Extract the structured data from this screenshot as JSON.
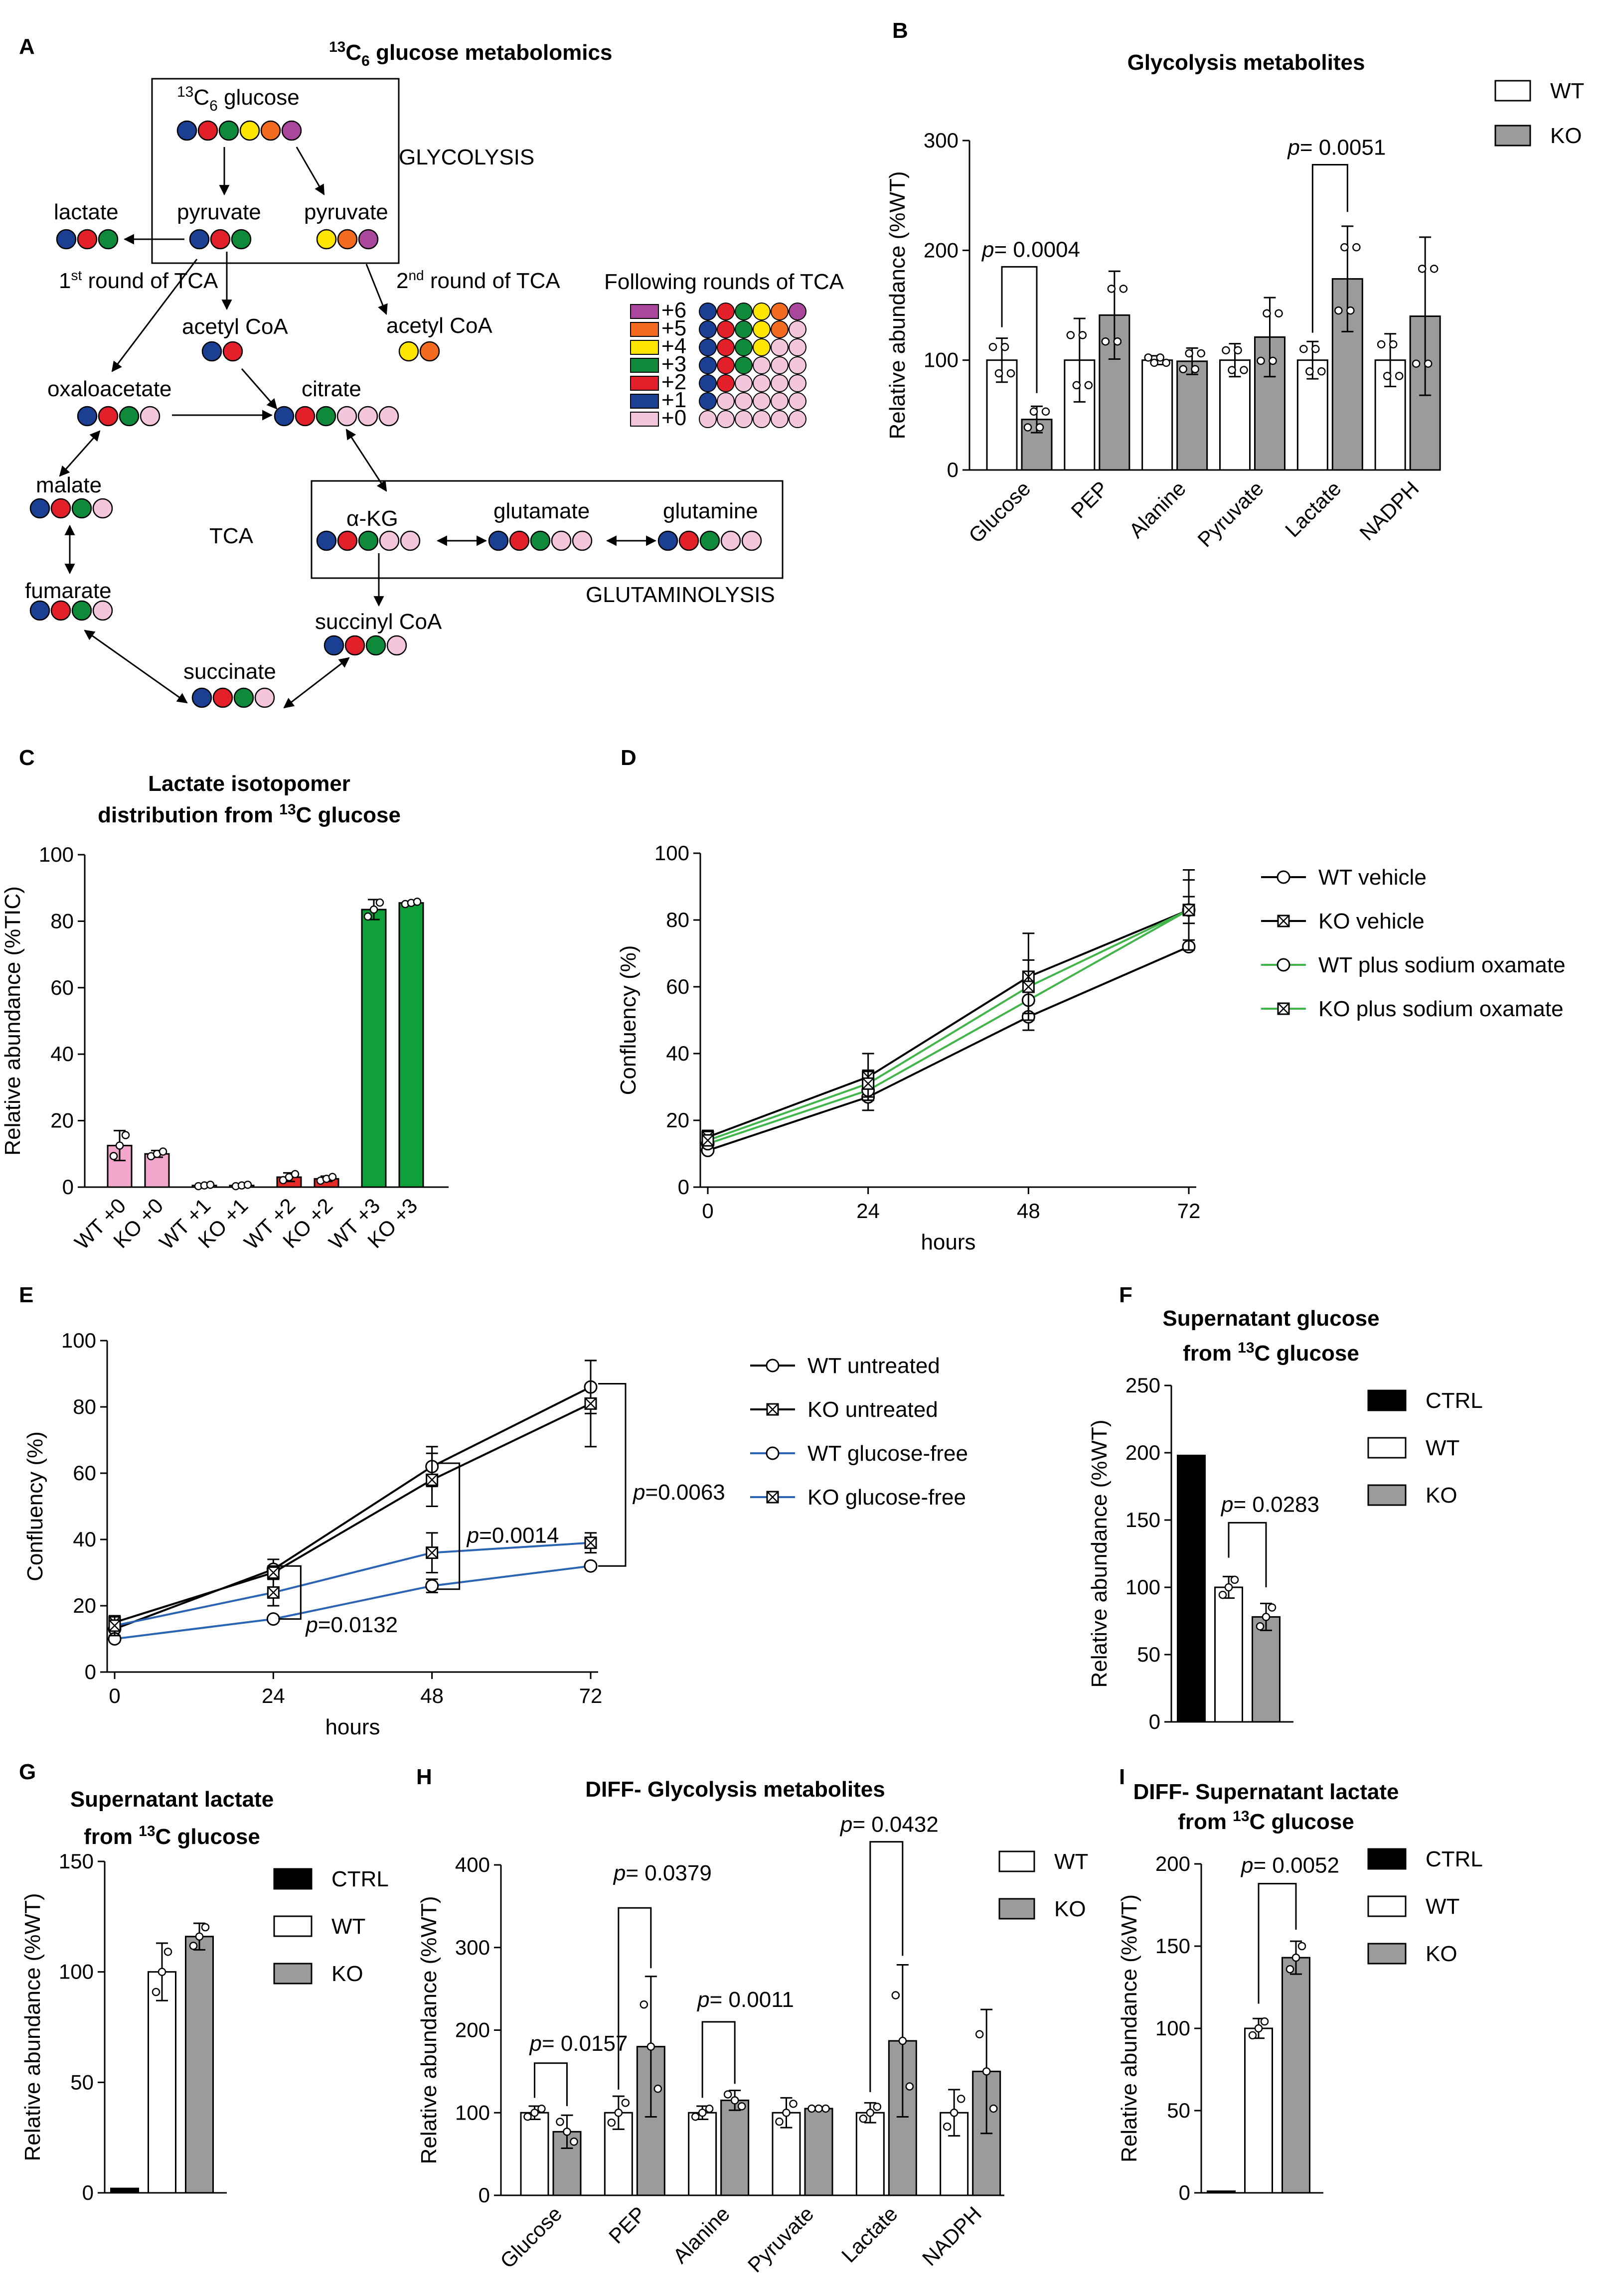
{
  "panel_labels": {
    "A": "A",
    "B": "B",
    "C": "C",
    "D": "D",
    "E": "E",
    "F": "F",
    "G": "G",
    "H": "H",
    "I": "I"
  },
  "colors": {
    "c0": "#f4c6dc",
    "c1": "#1a3f93",
    "c2": "#e3202a",
    "c3": "#0f8a3a",
    "c4": "#ffe600",
    "c5": "#f26b21",
    "c6": "#a9479d",
    "ko_bar": "#9b9b9b",
    "green_line": "#41b549",
    "blue_line": "#2b64b2",
    "lactate_pink": "#f2a6cb",
    "lactate_red": "#e52a2a",
    "lactate_green": "#10a03a"
  },
  "diagram": {
    "title_prefix": "13",
    "title_sub": "C",
    "title_sub2": "6",
    "title_rest": " glucose metabolomics",
    "glucose_sup": "13",
    "glucose_c": "C",
    "glucose_sub": "6",
    "glucose_rest": " glucose",
    "glycolysis": "GLYCOLYSIS",
    "pyruvate1": "pyruvate",
    "pyruvate2": "pyruvate",
    "lactate": "lactate",
    "first_round_1": "1",
    "first_round_st": "st",
    "first_round_2": " round of TCA",
    "second_round_1": "2",
    "second_round_nd": "nd",
    "second_round_2": " round of TCA",
    "acetyl1": "acetyl CoA",
    "acetyl2": "acetyl CoA",
    "oxaloacetate": "oxaloacetate",
    "citrate": "citrate",
    "malate": "malate",
    "tca": "TCA",
    "akg": "α-KG",
    "glutamate": "glutamate",
    "glutamine": "glutamine",
    "glutaminolysis": "GLUTAMINOLYSIS",
    "fumarate": "fumarate",
    "succinyl": "succinyl CoA",
    "succinate": "succinate",
    "following_rounds": "Following rounds of TCA",
    "isotopologues": [
      "+6",
      "+5",
      "+4",
      "+3",
      "+2",
      "+1",
      "+0"
    ]
  },
  "chart_data": [
    {
      "panel": "B",
      "type": "bar",
      "title": "Glycolysis metabolites",
      "categories": [
        "Glucose",
        "PEP",
        "Alanine",
        "Pyruvate",
        "Lactate",
        "NADPH"
      ],
      "ylabel": "Relative abundance (%WT)",
      "ylim": [
        0,
        300
      ],
      "yticks": [
        0,
        100,
        200,
        300
      ],
      "series": [
        {
          "name": "WT",
          "values": [
            100,
            100,
            100,
            100,
            100,
            100
          ],
          "errors": [
            20,
            38,
            4,
            15,
            17,
            24
          ]
        },
        {
          "name": "KO",
          "values": [
            46,
            141,
            99,
            121,
            174,
            140
          ],
          "errors": [
            12,
            40,
            12,
            36,
            48,
            72
          ]
        }
      ],
      "annotations": [
        {
          "text": "p= 0.0004",
          "category": "Glucose"
        },
        {
          "text": "p= 0.0051",
          "category": "Lactate"
        }
      ],
      "legend": [
        "WT",
        "KO"
      ]
    },
    {
      "panel": "C",
      "type": "bar",
      "title_line1": "Lactate isotopomer",
      "title_line2_pre": "distribution from ",
      "title_line2_sup": "13",
      "title_line2_post": "C glucose",
      "categories": [
        "WT +0",
        "KO +0",
        "WT +1",
        "KO +1",
        "WT +2",
        "KO +2",
        "WT +3",
        "KO +3"
      ],
      "values": [
        12.5,
        10,
        0.5,
        0.5,
        3,
        2.5,
        83.5,
        85.5
      ],
      "errors": [
        4.5,
        1,
        0.3,
        0.3,
        1.3,
        0.8,
        3,
        0.5
      ],
      "ylabel": "Relative abundance (%TIC)",
      "ylim": [
        0,
        100
      ],
      "yticks": [
        0,
        20,
        40,
        60,
        80,
        100
      ]
    },
    {
      "panel": "D",
      "type": "line",
      "xlabel": "hours",
      "ylabel": "Confluency (%)",
      "x": [
        0,
        24,
        48,
        72
      ],
      "xlim": [
        0,
        72
      ],
      "ylim": [
        0,
        100
      ],
      "yticks": [
        0,
        20,
        40,
        60,
        80,
        100
      ],
      "xticks": [
        0,
        24,
        48,
        72
      ],
      "series": [
        {
          "name": "WT vehicle",
          "values": [
            11,
            27,
            51,
            72
          ],
          "errors": [
            0,
            4,
            4,
            0
          ]
        },
        {
          "name": "KO vehicle",
          "values": [
            15,
            33,
            63,
            83
          ],
          "errors": [
            2,
            7,
            13,
            12
          ]
        },
        {
          "name": "WT plus sodium oxamate",
          "values": [
            13,
            29,
            56,
            83
          ],
          "errors": [
            0,
            3,
            4,
            4
          ]
        },
        {
          "name": "KO plus sodium oxamate",
          "values": [
            14,
            31,
            60,
            83
          ],
          "errors": [
            1,
            4,
            8,
            9
          ]
        }
      ]
    },
    {
      "panel": "E",
      "type": "line",
      "xlabel": "hours",
      "ylabel": "Confluency (%)",
      "x": [
        0,
        24,
        48,
        72
      ],
      "xlim": [
        0,
        72
      ],
      "ylim": [
        0,
        100
      ],
      "yticks": [
        0,
        20,
        40,
        60,
        80,
        100
      ],
      "xticks": [
        0,
        24,
        48,
        72
      ],
      "series": [
        {
          "name": "WT untreated",
          "values": [
            13,
            31,
            62,
            86
          ],
          "errors": [
            3,
            3,
            6,
            8
          ]
        },
        {
          "name": "KO untreated",
          "values": [
            15,
            30,
            58,
            81
          ],
          "errors": [
            2,
            2,
            8,
            13
          ]
        },
        {
          "name": "WT glucose-free",
          "values": [
            10,
            16,
            26,
            32
          ],
          "errors": [
            0,
            0,
            2,
            0
          ]
        },
        {
          "name": "KO glucose-free",
          "values": [
            14,
            24,
            36,
            39
          ],
          "errors": [
            3,
            4,
            6,
            3
          ]
        }
      ],
      "annotations": [
        "p=0.0132",
        "p=0.0014",
        "p=0.0063"
      ]
    },
    {
      "panel": "F",
      "type": "bar",
      "title_line1": "Supernatant glucose",
      "title_line2_pre": "from ",
      "title_line2_sup": "13",
      "title_line2_post": "C glucose",
      "categories": [
        "CTRL",
        "WT",
        "KO"
      ],
      "values": [
        198,
        100,
        78
      ],
      "errors": [
        0,
        8,
        10
      ],
      "ylabel": "Relative abundance (%WT)",
      "ylim": [
        0,
        250
      ],
      "yticks": [
        0,
        50,
        100,
        150,
        200,
        250
      ],
      "annotations": [
        "p= 0.0283"
      ],
      "legend": [
        "CTRL",
        "WT",
        "KO"
      ]
    },
    {
      "panel": "G",
      "type": "bar",
      "title_line1": "Supernatant lactate",
      "title_line2_pre": "from ",
      "title_line2_sup": "13",
      "title_line2_post": "C glucose",
      "categories": [
        "CTRL",
        "WT",
        "KO"
      ],
      "values": [
        2,
        100,
        116
      ],
      "errors": [
        0,
        13,
        6
      ],
      "ylabel": "Relative abundance (%WT)",
      "ylim": [
        0,
        150
      ],
      "yticks": [
        0,
        50,
        100,
        150
      ],
      "legend": [
        "CTRL",
        "WT",
        "KO"
      ]
    },
    {
      "panel": "H",
      "type": "bar",
      "title": "DIFF- Glycolysis metabolites",
      "categories": [
        "Glucose",
        "PEP",
        "Alanine",
        "Pyruvate",
        "Lactate",
        "NADPH"
      ],
      "ylabel": "Relative abundance (%WT)",
      "ylim": [
        0,
        400
      ],
      "yticks": [
        0,
        100,
        200,
        300,
        400
      ],
      "series": [
        {
          "name": "WT",
          "values": [
            100,
            100,
            100,
            100,
            100,
            100
          ],
          "errors": [
            8,
            20,
            8,
            18,
            12,
            28
          ]
        },
        {
          "name": "KO",
          "values": [
            77,
            180,
            115,
            105,
            187,
            150
          ],
          "errors": [
            20,
            85,
            12,
            0,
            92,
            75
          ]
        }
      ],
      "annotations": [
        "p= 0.0157",
        "p= 0.0379",
        "p= 0.0011",
        "p= 0.0432"
      ],
      "legend": [
        "WT",
        "KO"
      ]
    },
    {
      "panel": "I",
      "type": "bar",
      "title_line1": "DIFF- Supernatant lactate",
      "title_line2_pre": "from ",
      "title_line2_sup": "13",
      "title_line2_post": "C glucose",
      "categories": [
        "CTRL",
        "WT",
        "KO"
      ],
      "values": [
        1,
        100,
        143
      ],
      "errors": [
        0,
        6,
        10
      ],
      "ylabel": "Relative abundance (%WT)",
      "ylim": [
        0,
        200
      ],
      "yticks": [
        0,
        50,
        100,
        150,
        200
      ],
      "annotations": [
        "p= 0.0052"
      ],
      "legend": [
        "CTRL",
        "WT",
        "KO"
      ]
    }
  ]
}
